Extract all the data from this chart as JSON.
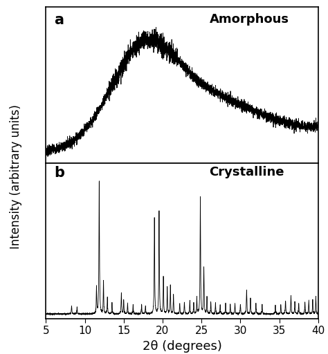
{
  "xlabel": "2θ (degrees)",
  "ylabel": "Intensity (arbitrary units)",
  "xmin": 5,
  "xmax": 40,
  "label_a": "a",
  "label_b": "b",
  "label_amorphous": "Amorphous",
  "label_crystalline": "Crystalline",
  "xticks": [
    5,
    10,
    15,
    20,
    25,
    30,
    35,
    40
  ],
  "line_color": "#000000",
  "background_color": "#ffffff",
  "label_fontsize": 13,
  "tick_fontsize": 11,
  "panel_label_fontsize": 15,
  "ylabel_fontsize": 12
}
